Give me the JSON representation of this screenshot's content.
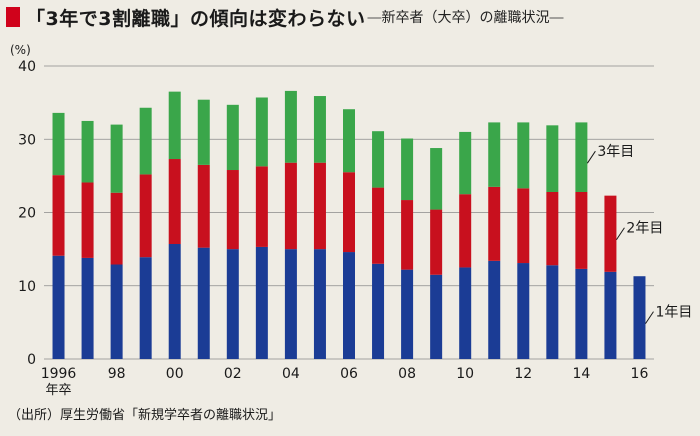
{
  "header": {
    "title": "「3年で3割離職」の傾向は変わらない",
    "subtitle": "新卒者（大卒）の離職状況",
    "subtitle_dash": "―"
  },
  "source": "（出所）厚生労働省「新規学卒者の離職状況」",
  "colors": {
    "year1": "#1b3c95",
    "year2": "#c8101e",
    "year3": "#3aa64a",
    "title_accent": "#d0021b",
    "background": "#efece4"
  },
  "chart_data": {
    "type": "bar",
    "stacked": true,
    "ylabel": "(%)",
    "ylim": [
      0,
      40
    ],
    "yticks": [
      0,
      10,
      20,
      30,
      40
    ],
    "grid": true,
    "categories": [
      "1996",
      "1997",
      "1998",
      "1999",
      "2000",
      "2001",
      "2002",
      "2003",
      "2004",
      "2005",
      "2006",
      "2007",
      "2008",
      "2009",
      "2010",
      "2011",
      "2012",
      "2013",
      "2014",
      "2015",
      "2016"
    ],
    "xtick_labels": [
      "1996",
      "",
      "98",
      "",
      "00",
      "",
      "02",
      "",
      "04",
      "",
      "06",
      "",
      "08",
      "",
      "10",
      "",
      "12",
      "",
      "14",
      "",
      "16"
    ],
    "xtick_sublabel": "年卒",
    "series": [
      {
        "name": "1年目",
        "color": "#1b3c95",
        "values": [
          14.1,
          13.8,
          12.9,
          13.9,
          15.7,
          15.2,
          15.0,
          15.3,
          15.0,
          15.0,
          14.6,
          13.0,
          12.2,
          11.5,
          12.5,
          13.4,
          13.1,
          12.8,
          12.3,
          11.9,
          11.3
        ]
      },
      {
        "name": "2年目",
        "color": "#c8101e",
        "values": [
          11.0,
          10.3,
          9.8,
          11.3,
          11.6,
          11.3,
          10.8,
          11.0,
          11.8,
          11.8,
          10.9,
          10.4,
          9.5,
          8.9,
          10.0,
          10.1,
          10.2,
          10.0,
          10.5,
          10.4,
          null
        ]
      },
      {
        "name": "3年目",
        "color": "#3aa64a",
        "values": [
          8.5,
          8.4,
          9.3,
          9.1,
          9.2,
          8.9,
          8.9,
          9.4,
          9.8,
          9.1,
          8.6,
          7.7,
          8.4,
          8.4,
          8.5,
          8.8,
          9.0,
          9.1,
          9.5,
          null,
          null
        ]
      }
    ],
    "legend_placement": "right, next to last bar of each series"
  }
}
